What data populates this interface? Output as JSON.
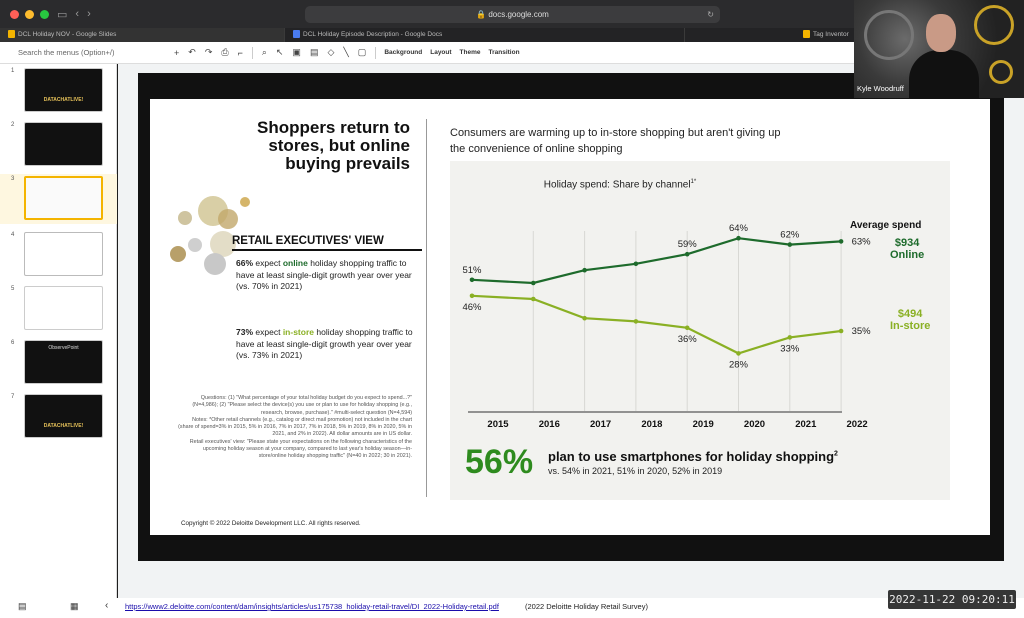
{
  "browser": {
    "url": "docs.google.com",
    "tabs": [
      {
        "label": "DCL Holiday NOV - Google Slides"
      },
      {
        "label": "DCL Holiday Episode Description - Google Docs"
      },
      {
        "label": "Tag Inventor"
      }
    ]
  },
  "toolbar": {
    "menu_search_placeholder": "Search the menus (Option+/)",
    "background_label": "Background",
    "layout_label": "Layout",
    "theme_label": "Theme",
    "transition_label": "Transition"
  },
  "filmstrip": {
    "slides": [
      {
        "num": "1",
        "text": "DATACHATLIVE!"
      },
      {
        "num": "2",
        "text": ""
      },
      {
        "num": "3",
        "text": ""
      },
      {
        "num": "4",
        "text": ""
      },
      {
        "num": "5",
        "text": ""
      },
      {
        "num": "6",
        "text": "ObservePoint"
      },
      {
        "num": "7",
        "text": "DATACHATLIVE!"
      }
    ],
    "selected": 3
  },
  "slide": {
    "headline": "Shoppers return to stores, but online buying prevails",
    "retail_heading": "RETAIL EXECUTIVES' VIEW",
    "stat1": {
      "pct": "66%",
      "word_pre": "expect",
      "highlight": "online",
      "rest": "holiday shopping traffic to have at least single-digit growth year over year (vs. 70% in 2021)"
    },
    "stat2": {
      "pct": "73%",
      "word_pre": "expect",
      "highlight": "in-store",
      "rest": "holiday shopping traffic to have at least single-digit growth year over year (vs. 73% in 2021)"
    },
    "notes_q": "Questions: (1) \"What percentage of your total holiday budget do you expect to spend...?\" (N=4,986); (2) \"Please select the device(s) you use or plan to use for holiday shopping (e.g., research, browse, purchase).\" #multi-select question (N=4,594)",
    "notes_n": "Notes: *Other retail channels (e.g., catalog or direct mail promotion) not included in the chart (share of spend=3% in 2015, 5% in 2016, 7% in 2017, 7% in 2018, 5% in 2019, 8% in 2020, 5% in 2021, and 2% in 2022). All dollar amounts are in US dollar.",
    "notes_r": "Retail executives' view: \"Please state your expectations on the following characteristics of the upcoming holiday season at your company, compared to last year's holiday season—in-store/online holiday shopping traffic\" (N=40 in 2022; 30 in 2021).",
    "copyright": "Copyright © 2022 Deloitte Development LLC. All rights reserved.",
    "subtitle": "Consumers are warming up to in-store shopping but aren't giving up the convenience of online shopping",
    "chart_title": "Holiday spend: Share by channel",
    "chart_title_sup": "1*",
    "avg_spend_label": "Average spend",
    "online_amount": "$934",
    "online_label": "Online",
    "instore_amount": "$494",
    "instore_label": "In-store",
    "big_stat": "56%",
    "big_text": "plan to use smartphones for holiday shopping",
    "big_text_sup": "2",
    "big_sub": "vs. 54% in 2021, 51% in 2020, 52% in 2019"
  },
  "chart_data": {
    "type": "line",
    "title": "Holiday spend: Share by channel1*",
    "x": [
      "2015",
      "2016",
      "2017",
      "2018",
      "2019",
      "2020",
      "2021",
      "2022"
    ],
    "ylim": [
      20,
      70
    ],
    "series": [
      {
        "name": "Online",
        "values": [
          51,
          50,
          54,
          56,
          59,
          64,
          62,
          63
        ],
        "labels": [
          "51%",
          null,
          null,
          null,
          "59%",
          "64%",
          "62%",
          "63%"
        ],
        "color": "#1e6b2c"
      },
      {
        "name": "In-store",
        "values": [
          46,
          45,
          39,
          38,
          36,
          28,
          33,
          35
        ],
        "labels": [
          "46%",
          null,
          null,
          null,
          "36%",
          "28%",
          "33%",
          "35%"
        ],
        "color": "#8ab024"
      }
    ]
  },
  "footer": {
    "link": "https://www2.deloitte.com/content/dam/insights/articles/us175738_holiday-retail-travel/DI_2022-Holiday-retail.pdf",
    "source": "(2022 Deloitte Holiday Retail Survey)",
    "clock": "2022-11-22  09:20:11"
  },
  "webcam": {
    "name": "Kyle Woodruff"
  },
  "colors": {
    "online": "#1e6b2c",
    "instore": "#8ab024",
    "bigstat": "#2e8b1e"
  }
}
